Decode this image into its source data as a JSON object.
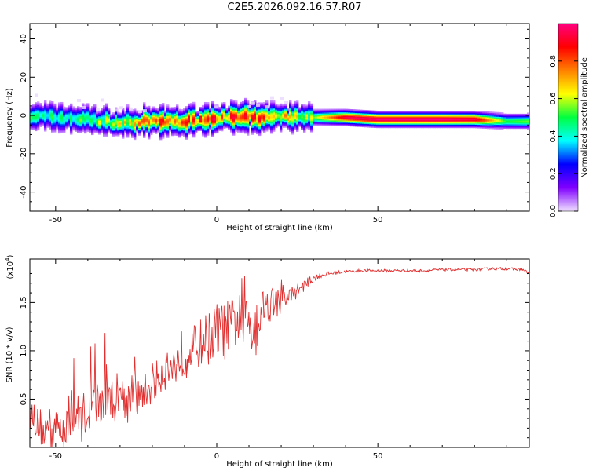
{
  "title": "C2E5.2026.092.16.57.R07",
  "chart_data": [
    {
      "type": "heatmap",
      "xlabel": "Height of straight line (km)",
      "ylabel": "Frequency (Hz)",
      "xlim": [
        -58,
        97
      ],
      "ylim": [
        -50,
        48
      ],
      "xticks": [
        -50,
        0,
        50
      ],
      "yticks": [
        40,
        20,
        0,
        -20,
        -40
      ],
      "colorbar": {
        "label": "Normalized spectral amplitude",
        "range": [
          0,
          1
        ],
        "ticks": [
          "0.0",
          "0.2",
          "0.4",
          "0.6",
          "0.8"
        ],
        "tick_values": [
          0,
          0.2,
          0.4,
          0.6,
          0.8
        ],
        "colormap": [
          "#f0e0ff",
          "#8000ff",
          "#0000ff",
          "#00ffff",
          "#00ff40",
          "#ffff00",
          "#ff8000",
          "#ff0000",
          "#ff0080"
        ]
      },
      "ridge": {
        "description_points_x": [
          -58,
          -50,
          -40,
          -30,
          -20,
          -10,
          0,
          10,
          20,
          30,
          40,
          50,
          60,
          70,
          80,
          90,
          97
        ],
        "center_hz": [
          0,
          -1,
          -2,
          -4,
          -3,
          -3,
          -1,
          -1,
          -1,
          -1,
          -1,
          -2,
          -2,
          -2,
          -2,
          -3,
          -3
        ],
        "peak_amp": [
          0.45,
          0.45,
          0.5,
          0.6,
          0.75,
          0.8,
          0.85,
          0.8,
          0.75,
          0.55,
          0.95,
          1.0,
          1.0,
          1.0,
          0.95,
          0.5,
          0.55
        ]
      }
    },
    {
      "type": "line",
      "xlabel": "Height of straight line (km)",
      "ylabel": "SNR (10 * v/v)",
      "y_multiplier": "(x10",
      "y_multiplier_exp": "4",
      "y_multiplier_close": ")",
      "xlim": [
        -58,
        97
      ],
      "ylim": [
        0,
        1.95
      ],
      "xticks": [
        -50,
        0,
        50
      ],
      "yticks": [
        0.5,
        1.0,
        1.5
      ],
      "ytick_labels": [
        "0.5",
        "1.0",
        "1.5"
      ],
      "color": "#e03030",
      "series": [
        {
          "name": "SNR",
          "x": [
            -58,
            -56,
            -54,
            -52,
            -50,
            -48,
            -46,
            -44,
            -42,
            -40,
            -38,
            -36,
            -34,
            -32,
            -30,
            -28,
            -26,
            -24,
            -22,
            -20,
            -18,
            -16,
            -14,
            -12,
            -10,
            -8,
            -6,
            -4,
            -2,
            0,
            2,
            4,
            6,
            8,
            10,
            12,
            14,
            16,
            18,
            20,
            22,
            24,
            26,
            28,
            30,
            32,
            35,
            40,
            45,
            50,
            55,
            60,
            65,
            70,
            75,
            80,
            85,
            90,
            95,
            97
          ],
          "y": [
            0.35,
            0.25,
            0.2,
            0.15,
            0.2,
            0.18,
            0.3,
            0.35,
            0.3,
            0.4,
            0.45,
            0.45,
            0.5,
            0.5,
            0.55,
            0.5,
            0.55,
            0.5,
            0.6,
            0.6,
            0.75,
            0.8,
            0.8,
            0.9,
            0.95,
            1.0,
            1.05,
            1.1,
            1.15,
            1.2,
            1.2,
            1.25,
            1.3,
            1.3,
            1.35,
            1.25,
            1.45,
            1.5,
            1.5,
            1.5,
            1.55,
            1.6,
            1.65,
            1.7,
            1.75,
            1.78,
            1.8,
            1.82,
            1.83,
            1.83,
            1.83,
            1.83,
            1.83,
            1.84,
            1.84,
            1.84,
            1.85,
            1.85,
            1.84,
            1.8
          ],
          "noise": [
            0.2,
            0.25,
            0.3,
            0.4,
            0.3,
            0.25,
            0.35,
            0.35,
            0.35,
            0.4,
            0.35,
            0.4,
            0.35,
            0.35,
            0.4,
            0.3,
            0.3,
            0.3,
            0.25,
            0.25,
            0.3,
            0.3,
            0.3,
            0.3,
            0.35,
            0.35,
            0.35,
            0.4,
            0.4,
            0.45,
            0.45,
            0.4,
            0.4,
            0.45,
            0.45,
            0.5,
            0.3,
            0.3,
            0.25,
            0.2,
            0.15,
            0.12,
            0.1,
            0.08,
            0.05,
            0.04,
            0.03,
            0.02,
            0.02,
            0.02,
            0.02,
            0.02,
            0.02,
            0.02,
            0.02,
            0.02,
            0.02,
            0.02,
            0.02,
            0.02
          ]
        }
      ]
    }
  ]
}
